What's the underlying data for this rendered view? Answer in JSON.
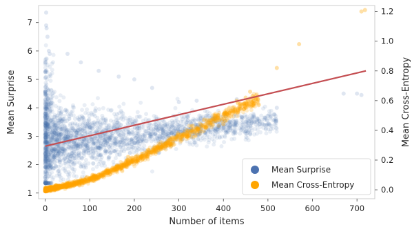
{
  "chart_data": {
    "type": "scatter",
    "xlabel": "Number of items",
    "ylabel": "Mean Surprise",
    "y2label": "Mean Cross-Entropy",
    "xlim": [
      -15,
      740
    ],
    "ylim": [
      0.8,
      7.6
    ],
    "y2lim": [
      -0.06,
      1.24
    ],
    "xticks": [
      0,
      100,
      200,
      300,
      400,
      500,
      600,
      700
    ],
    "yticks": [
      1,
      2,
      3,
      4,
      5,
      6,
      7
    ],
    "y2ticks": [
      0.0,
      0.2,
      0.4,
      0.6,
      0.8,
      1.0,
      1.2
    ],
    "grid": false,
    "legend_position": "lower-right",
    "colors": {
      "surprise": "#4c72b0",
      "cross_entropy": "#ffa500",
      "trend": "#c44e52"
    },
    "series": [
      {
        "name": "Mean Surprise",
        "axis": "left",
        "trend": "spread around 2.7-3.2, very dense below 100 items, max about 7.4 near 0 items",
        "outliers": [
          [
            2,
            7.35
          ],
          [
            2,
            6.9
          ],
          [
            3,
            6.8
          ],
          [
            5,
            6.5
          ],
          [
            8,
            6.0
          ],
          [
            10,
            5.9
          ],
          [
            50,
            5.9
          ],
          [
            80,
            5.6
          ],
          [
            120,
            5.3
          ],
          [
            165,
            5.1
          ],
          [
            200,
            5.0
          ],
          [
            240,
            4.7
          ],
          [
            300,
            4.2
          ],
          [
            340,
            4.25
          ],
          [
            430,
            4.3
          ],
          [
            520,
            4.0
          ],
          [
            670,
            4.5
          ],
          [
            700,
            4.5
          ],
          [
            710,
            4.45
          ]
        ]
      },
      {
        "name": "Mean Cross-Entropy",
        "axis": "right",
        "curve": [
          [
            0,
            0.0
          ],
          [
            50,
            0.03
          ],
          [
            100,
            0.07
          ],
          [
            150,
            0.13
          ],
          [
            200,
            0.2
          ],
          [
            250,
            0.27
          ],
          [
            300,
            0.35
          ],
          [
            350,
            0.42
          ],
          [
            400,
            0.5
          ],
          [
            450,
            0.57
          ],
          [
            500,
            0.64
          ]
        ],
        "outliers": [
          [
            430,
            0.6
          ],
          [
            450,
            0.62
          ],
          [
            460,
            0.66
          ],
          [
            520,
            0.82
          ],
          [
            570,
            0.98
          ],
          [
            710,
            1.2
          ],
          [
            718,
            1.21
          ]
        ]
      }
    ],
    "trend_line": {
      "axis": "left",
      "points": [
        [
          0,
          2.65
        ],
        [
          720,
          5.3
        ]
      ]
    }
  }
}
